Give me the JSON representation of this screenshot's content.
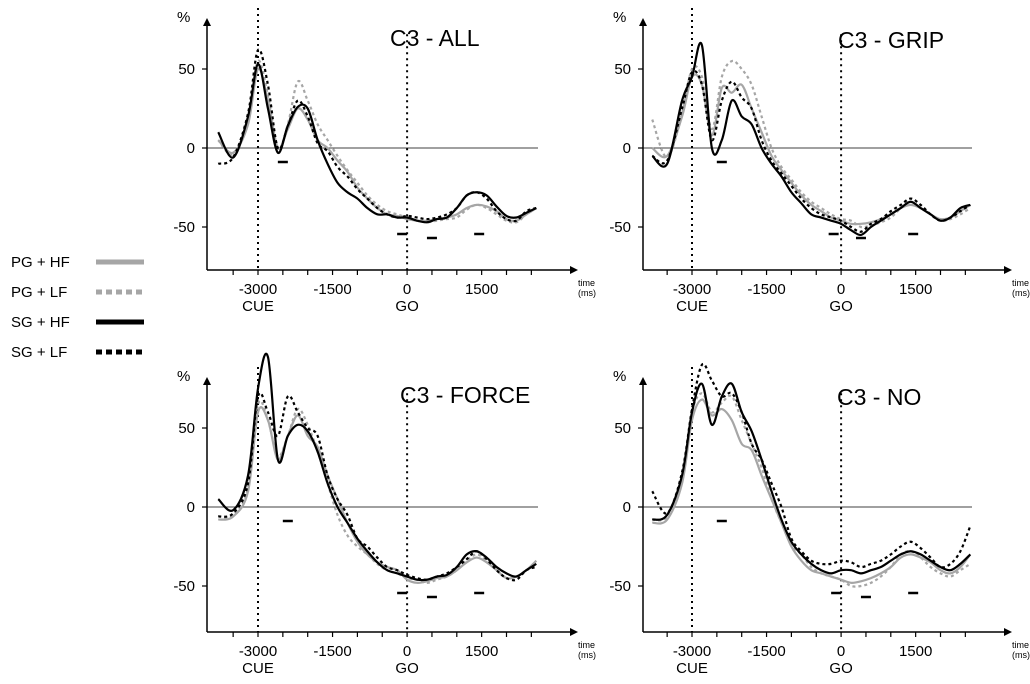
{
  "legend": [
    {
      "label": "PG + HF",
      "color": "#a6a6a6",
      "dash": "solid"
    },
    {
      "label": "PG + LF",
      "color": "#a6a6a6",
      "dash": "dotted"
    },
    {
      "label": "SG + HF",
      "color": "#000000",
      "dash": "solid"
    },
    {
      "label": "SG + LF",
      "color": "#000000",
      "dash": "dotted"
    }
  ],
  "x_axis": {
    "unit_top": "time",
    "unit_bottom": "(ms)",
    "ticks": [
      {
        "value": -3000,
        "label": "-3000"
      },
      {
        "value": -1500,
        "label": "-1500"
      },
      {
        "value": 0,
        "label": "0"
      },
      {
        "value": 1500,
        "label": "1500"
      }
    ],
    "events": [
      {
        "value": -3000,
        "label": "CUE"
      },
      {
        "value": 0,
        "label": "GO"
      }
    ],
    "range": [
      -3800,
      3100
    ]
  },
  "y_axis": {
    "unit": "%",
    "ticks": [
      {
        "value": 50,
        "label": "50"
      },
      {
        "value": 0,
        "label": "0"
      },
      {
        "value": -50,
        "label": "-50"
      }
    ],
    "range": [
      -78,
      80
    ]
  },
  "chart_data": [
    {
      "type": "line",
      "title": "C3 - ALL",
      "x": [
        -3800,
        -3500,
        -3200,
        -3000,
        -2800,
        -2600,
        -2400,
        -2200,
        -2000,
        -1800,
        -1600,
        -1400,
        -1200,
        -1000,
        -800,
        -600,
        -400,
        -200,
        0,
        200,
        400,
        600,
        800,
        1000,
        1200,
        1400,
        1600,
        1800,
        2000,
        2200,
        2400,
        2600
      ],
      "series": [
        {
          "name": "PG + HF",
          "values": [
            5,
            -3,
            15,
            50,
            30,
            0,
            12,
            25,
            18,
            5,
            0,
            -8,
            -15,
            -25,
            -32,
            -38,
            -42,
            -43,
            -45,
            -46,
            -46,
            -45,
            -44,
            -42,
            -38,
            -36,
            -37,
            -40,
            -45,
            -46,
            -42,
            -38
          ]
        },
        {
          "name": "PG + LF",
          "values": [
            5,
            -4,
            18,
            55,
            33,
            0,
            15,
            42,
            30,
            15,
            5,
            -5,
            -14,
            -22,
            -30,
            -36,
            -40,
            -42,
            -44,
            -46,
            -47,
            -46,
            -45,
            -44,
            -39,
            -36,
            -38,
            -42,
            -46,
            -47,
            -42,
            -38
          ]
        },
        {
          "name": "SG + HF",
          "values": [
            10,
            -6,
            20,
            53,
            25,
            -3,
            14,
            26,
            25,
            5,
            -10,
            -22,
            -28,
            -32,
            -38,
            -42,
            -42,
            -44,
            -44,
            -46,
            -47,
            -45,
            -44,
            -38,
            -30,
            -28,
            -30,
            -37,
            -43,
            -44,
            -41,
            -38
          ]
        },
        {
          "name": "SG + LF",
          "values": [
            -10,
            -6,
            22,
            62,
            40,
            0,
            14,
            30,
            20,
            3,
            -2,
            -12,
            -18,
            -26,
            -32,
            -38,
            -42,
            -44,
            -43,
            -44,
            -45,
            -44,
            -42,
            -38,
            -30,
            -28,
            -32,
            -40,
            -45,
            -46,
            -40,
            -38
          ]
        }
      ],
      "significance_x": [
        -2500,
        -100,
        500,
        1450
      ]
    },
    {
      "type": "line",
      "title": "C3 - GRIP",
      "x": [
        -3800,
        -3500,
        -3200,
        -3000,
        -2800,
        -2600,
        -2400,
        -2200,
        -2000,
        -1800,
        -1600,
        -1400,
        -1200,
        -1000,
        -800,
        -600,
        -400,
        -200,
        0,
        200,
        400,
        600,
        800,
        1000,
        1200,
        1400,
        1600,
        1800,
        2000,
        2200,
        2400,
        2600
      ],
      "series": [
        {
          "name": "PG + HF",
          "values": [
            0,
            -5,
            20,
            45,
            40,
            8,
            38,
            35,
            40,
            25,
            10,
            -5,
            -14,
            -22,
            -30,
            -36,
            -40,
            -44,
            -46,
            -48,
            -48,
            -47,
            -45,
            -42,
            -38,
            -36,
            -38,
            -42,
            -45,
            -44,
            -40,
            -36
          ]
        },
        {
          "name": "PG + LF",
          "values": [
            18,
            -6,
            22,
            50,
            45,
            12,
            45,
            55,
            50,
            40,
            20,
            0,
            -12,
            -20,
            -28,
            -34,
            -38,
            -42,
            -45,
            -46,
            -50,
            -49,
            -47,
            -44,
            -38,
            -32,
            -36,
            -42,
            -46,
            -45,
            -42,
            -38
          ]
        },
        {
          "name": "SG + HF",
          "values": [
            -5,
            -10,
            30,
            45,
            65,
            0,
            5,
            30,
            20,
            15,
            0,
            -10,
            -18,
            -28,
            -35,
            -42,
            -44,
            -46,
            -48,
            -52,
            -55,
            -50,
            -46,
            -42,
            -38,
            -34,
            -38,
            -42,
            -46,
            -44,
            -38,
            -36
          ]
        },
        {
          "name": "SG + LF",
          "values": [
            -5,
            -8,
            25,
            48,
            40,
            5,
            30,
            42,
            32,
            25,
            5,
            -8,
            -16,
            -24,
            -32,
            -38,
            -42,
            -44,
            -46,
            -50,
            -53,
            -48,
            -45,
            -40,
            -36,
            -32,
            -36,
            -42,
            -46,
            -44,
            -40,
            -36
          ]
        }
      ],
      "significance_x": [
        -2400,
        -150,
        400,
        1450
      ]
    },
    {
      "type": "line",
      "title": "C3 - FORCE",
      "x": [
        -3800,
        -3500,
        -3200,
        -3000,
        -2800,
        -2600,
        -2400,
        -2200,
        -2000,
        -1800,
        -1600,
        -1400,
        -1200,
        -1000,
        -800,
        -600,
        -400,
        -200,
        0,
        200,
        400,
        600,
        800,
        1000,
        1200,
        1400,
        1600,
        1800,
        2000,
        2200,
        2400,
        2600
      ],
      "series": [
        {
          "name": "PG + HF",
          "values": [
            -8,
            -6,
            10,
            60,
            55,
            30,
            45,
            58,
            45,
            38,
            20,
            5,
            -10,
            -22,
            -30,
            -35,
            -38,
            -40,
            -46,
            -48,
            -47,
            -45,
            -44,
            -40,
            -35,
            -32,
            -35,
            -40,
            -45,
            -44,
            -40,
            -34
          ]
        },
        {
          "name": "PG + LF",
          "values": [
            -6,
            -5,
            12,
            65,
            55,
            32,
            45,
            62,
            52,
            35,
            15,
            -5,
            -18,
            -25,
            -30,
            -36,
            -40,
            -42,
            -45,
            -46,
            -48,
            -46,
            -44,
            -40,
            -34,
            -30,
            -34,
            -40,
            -45,
            -44,
            -40,
            -36
          ]
        },
        {
          "name": "SG + HF",
          "values": [
            5,
            -2,
            20,
            75,
            95,
            30,
            45,
            52,
            48,
            35,
            15,
            0,
            -10,
            -20,
            -28,
            -35,
            -40,
            -42,
            -44,
            -46,
            -46,
            -44,
            -43,
            -38,
            -30,
            -28,
            -32,
            -38,
            -42,
            -44,
            -40,
            -36
          ]
        },
        {
          "name": "SG + LF",
          "values": [
            -6,
            -4,
            15,
            70,
            60,
            45,
            70,
            60,
            50,
            45,
            20,
            5,
            -5,
            -20,
            -25,
            -32,
            -38,
            -40,
            -43,
            -45,
            -46,
            -44,
            -42,
            -38,
            -33,
            -28,
            -33,
            -40,
            -45,
            -46,
            -40,
            -38
          ]
        }
      ],
      "significance_x": [
        -2400,
        -100,
        500,
        1450
      ]
    },
    {
      "type": "line",
      "title": "C3 - NO",
      "x": [
        -3800,
        -3500,
        -3200,
        -3000,
        -2800,
        -2600,
        -2400,
        -2200,
        -2000,
        -1800,
        -1600,
        -1400,
        -1200,
        -1000,
        -800,
        -600,
        -400,
        -200,
        0,
        200,
        400,
        600,
        800,
        1000,
        1200,
        1400,
        1600,
        1800,
        2000,
        2200,
        2400,
        2600
      ],
      "series": [
        {
          "name": "PG + HF",
          "values": [
            -10,
            -8,
            15,
            55,
            68,
            58,
            62,
            55,
            40,
            36,
            20,
            5,
            -10,
            -25,
            -34,
            -40,
            -42,
            -44,
            -46,
            -48,
            -47,
            -45,
            -42,
            -38,
            -32,
            -30,
            -32,
            -35,
            -40,
            -42,
            -38,
            -30
          ]
        },
        {
          "name": "PG + LF",
          "values": [
            -8,
            -6,
            18,
            60,
            72,
            60,
            66,
            70,
            55,
            40,
            25,
            5,
            -10,
            -24,
            -30,
            -38,
            -42,
            -44,
            -46,
            -50,
            -50,
            -48,
            -44,
            -38,
            -30,
            -28,
            -32,
            -38,
            -42,
            -44,
            -40,
            -36
          ]
        },
        {
          "name": "SG + HF",
          "values": [
            -8,
            -5,
            20,
            60,
            78,
            52,
            70,
            78,
            60,
            48,
            30,
            10,
            -8,
            -22,
            -30,
            -36,
            -40,
            -42,
            -40,
            -40,
            -42,
            -40,
            -38,
            -34,
            -30,
            -28,
            -30,
            -34,
            -38,
            -40,
            -36,
            -30
          ]
        },
        {
          "name": "SG + LF",
          "values": [
            10,
            -4,
            22,
            62,
            90,
            80,
            70,
            72,
            60,
            40,
            30,
            15,
            0,
            -20,
            -28,
            -34,
            -36,
            -36,
            -34,
            -35,
            -38,
            -36,
            -34,
            -30,
            -25,
            -22,
            -26,
            -32,
            -38,
            -36,
            -28,
            -12
          ]
        }
      ],
      "significance_x": [
        -2400,
        -100,
        500,
        1450
      ]
    }
  ]
}
